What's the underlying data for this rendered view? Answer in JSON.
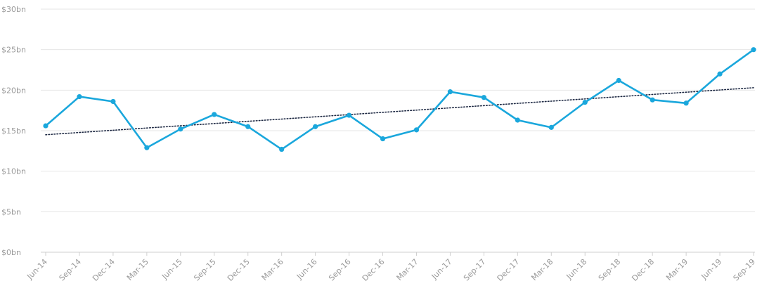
{
  "chart_data": {
    "type": "line",
    "categories": [
      "Jun-14",
      "Sep-14",
      "Dec-14",
      "Mar-15",
      "Jun-15",
      "Sep-15",
      "Dec-15",
      "Mar-16",
      "Jun-16",
      "Sep-16",
      "Dec-16",
      "Mar-17",
      "Jun-17",
      "Sep-17",
      "Dec-17",
      "Mar-18",
      "Jun-18",
      "Sep-18",
      "Dec-18",
      "Mar-19",
      "Jun-19",
      "Sep-19"
    ],
    "series": [
      {
        "values": [
          15.6,
          19.2,
          18.6,
          12.9,
          15.2,
          17.0,
          15.5,
          12.7,
          15.5,
          16.9,
          14.0,
          15.1,
          19.8,
          19.1,
          16.3,
          15.4,
          18.5,
          21.2,
          18.8,
          18.4,
          22.0,
          25.0
        ],
        "color": "#1aa7dc"
      }
    ],
    "trendline": {
      "start": 14.5,
      "end": 20.3,
      "color": "#1f2a44",
      "style": "dotted"
    },
    "ylim": [
      0,
      30
    ],
    "yticks": [
      0,
      5,
      10,
      15,
      20,
      25,
      30
    ],
    "ytick_labels": [
      "$0bn",
      "$5bn",
      "$10bn",
      "$15bn",
      "$20bn",
      "$25bn",
      "$30bn"
    ],
    "title": "",
    "xlabel": "",
    "ylabel": "",
    "grid": true,
    "legend": "none"
  }
}
